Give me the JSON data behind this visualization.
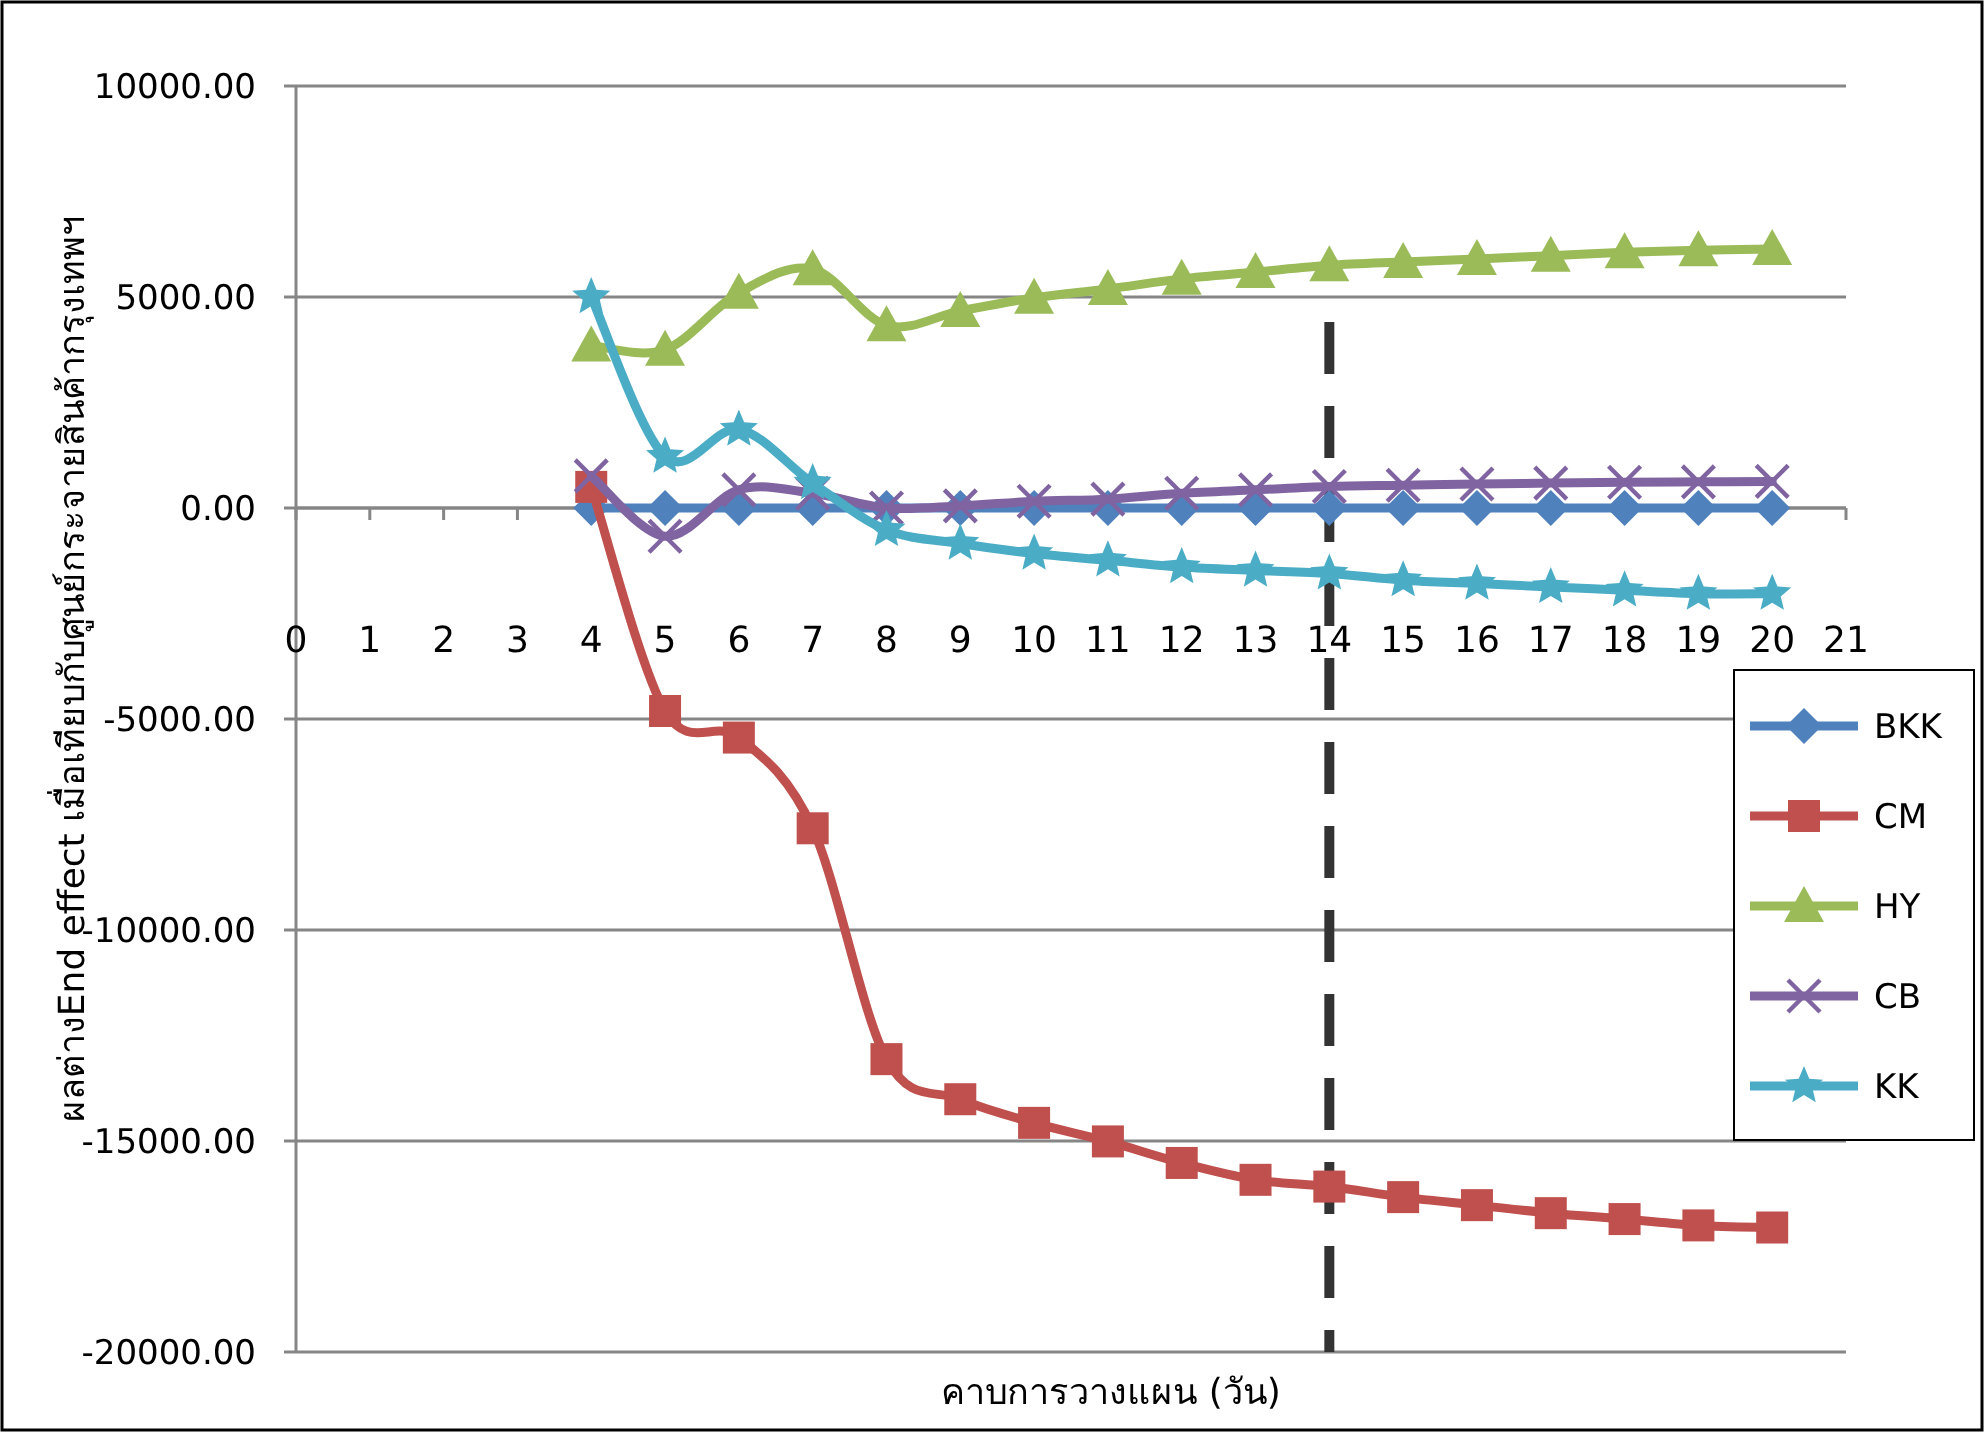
{
  "chart_data": {
    "type": "line",
    "xlabel": "คาบการวางแผน (วัน)",
    "ylabel": "ผลต่างEnd effect เมื่อเทียบกับศูนย์กระจายสินค้ากรุงเทพฯ",
    "x": [
      4,
      5,
      6,
      7,
      8,
      9,
      10,
      11,
      12,
      13,
      14,
      15,
      16,
      17,
      18,
      19,
      20
    ],
    "series": [
      {
        "name": "BKK",
        "color": "#4f81bd",
        "marker": "diamond",
        "values": [
          0,
          0,
          0,
          0,
          0,
          0,
          0,
          0,
          0,
          0,
          0,
          0,
          0,
          0,
          0,
          0,
          0
        ]
      },
      {
        "name": "CM",
        "color": "#c0504d",
        "marker": "square",
        "values": [
          500,
          -4810,
          -5440,
          -7590,
          -13060,
          -14010,
          -14570,
          -15010,
          -15520,
          -15920,
          -16080,
          -16330,
          -16520,
          -16710,
          -16850,
          -17000,
          -17050
        ]
      },
      {
        "name": "HY",
        "color": "#9bbb59",
        "marker": "triangle",
        "values": [
          3850,
          3750,
          5100,
          5660,
          4330,
          4670,
          4980,
          5190,
          5430,
          5590,
          5750,
          5830,
          5900,
          5980,
          6060,
          6110,
          6140
        ]
      },
      {
        "name": "CB",
        "color": "#8064a2",
        "marker": "cross",
        "values": [
          760,
          -670,
          430,
          350,
          0,
          50,
          160,
          210,
          350,
          430,
          510,
          540,
          570,
          590,
          610,
          620,
          630
        ]
      },
      {
        "name": "KK",
        "color": "#4bacc6",
        "marker": "star",
        "values": [
          5000,
          1220,
          1860,
          590,
          -520,
          -840,
          -1080,
          -1240,
          -1400,
          -1480,
          -1550,
          -1710,
          -1790,
          -1870,
          -1950,
          -2030,
          -2030
        ]
      }
    ],
    "xlim": [
      0,
      21
    ],
    "xticks": [
      0,
      1,
      2,
      3,
      4,
      5,
      6,
      7,
      8,
      9,
      10,
      11,
      12,
      13,
      14,
      15,
      16,
      17,
      18,
      19,
      20,
      21
    ],
    "ylim": [
      -20000,
      10000
    ],
    "yticks": [
      {
        "value": -20000,
        "label": "-20000.00"
      },
      {
        "value": -15000,
        "label": "-15000.00"
      },
      {
        "value": -10000,
        "label": "-10000.00"
      },
      {
        "value": -5000,
        "label": "-5000.00"
      },
      {
        "value": 0,
        "label": "0.00"
      },
      {
        "value": 5000,
        "label": "5000.00"
      },
      {
        "value": 10000,
        "label": "10000.00"
      }
    ],
    "ref_lines": [
      {
        "axis": "x",
        "value": 14,
        "color": "#333333",
        "line_style": "dashed"
      }
    ],
    "grid": "y",
    "legend": "right",
    "line_style": "solid"
  }
}
